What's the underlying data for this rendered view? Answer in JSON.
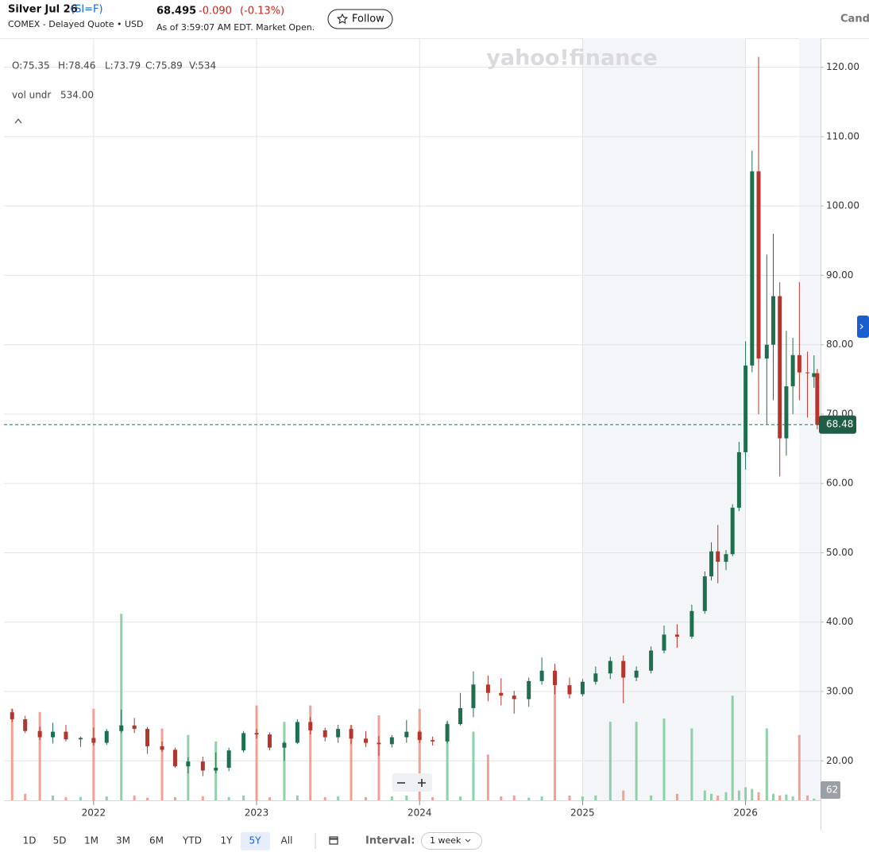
{
  "header": {
    "name": "Silver Jul 26",
    "symbol": "(SI=F)",
    "exchange": "COMEX - Delayed Quote • USD",
    "price": "68.495",
    "change": "-0.090",
    "change_pct": "(-0.13%)",
    "as_of": "As of 3:59:07 AM EDT. Market Open.",
    "follow": "Follow",
    "chart_style": "Candle"
  },
  "legend": {
    "ohlcv": [
      "O:75.35",
      "H:78.46",
      "L:73.79",
      "C:75.89",
      "V:534"
    ],
    "study": "vol undr",
    "study_value": "534.00"
  },
  "toolbar": {
    "ranges": [
      "1D",
      "5D",
      "1M",
      "3M",
      "6M",
      "YTD",
      "1Y",
      "5Y",
      "All"
    ],
    "selected": 7,
    "interval_label": "Interval:",
    "interval": "1 week"
  },
  "chart_data": {
    "type": "candlestick",
    "watermark": "yahoo!finance",
    "x": [
      2021.5,
      2021.58,
      2021.67,
      2021.75,
      2021.83,
      2021.92,
      2022.0,
      2022.08,
      2022.17,
      2022.25,
      2022.33,
      2022.42,
      2022.5,
      2022.58,
      2022.67,
      2022.75,
      2022.83,
      2022.92,
      2023.0,
      2023.08,
      2023.17,
      2023.25,
      2023.33,
      2023.42,
      2023.5,
      2023.58,
      2023.67,
      2023.75,
      2023.83,
      2023.92,
      2024.0,
      2024.08,
      2024.17,
      2024.25,
      2024.33,
      2024.42,
      2024.5,
      2024.58,
      2024.67,
      2024.75,
      2024.83,
      2024.92,
      2025.0,
      2025.08,
      2025.17,
      2025.25,
      2025.33,
      2025.42,
      2025.5,
      2025.58,
      2025.67,
      2025.75,
      2025.79,
      2025.83,
      2025.88,
      2025.92,
      2025.96,
      2026.0,
      2026.04,
      2026.08,
      2026.13,
      2026.17,
      2026.21,
      2026.25,
      2026.29,
      2026.33,
      2026.38,
      2026.42,
      2026.44
    ],
    "ohlc": [
      [
        27.0,
        27.5,
        25.6,
        26.0
      ],
      [
        26.0,
        26.5,
        24.0,
        24.3
      ],
      [
        24.3,
        24.9,
        23.0,
        23.4
      ],
      [
        23.4,
        25.5,
        22.5,
        24.2
      ],
      [
        24.2,
        25.2,
        22.8,
        23.1
      ],
      [
        23.1,
        23.5,
        22.0,
        23.3
      ],
      [
        23.3,
        24.8,
        22.2,
        22.6
      ],
      [
        22.6,
        24.6,
        22.3,
        24.3
      ],
      [
        24.3,
        27.4,
        24.0,
        25.1
      ],
      [
        25.1,
        26.2,
        24.0,
        24.6
      ],
      [
        24.6,
        24.9,
        21.0,
        22.1
      ],
      [
        22.1,
        22.8,
        21.3,
        21.6
      ],
      [
        21.6,
        21.9,
        19.0,
        19.2
      ],
      [
        19.2,
        20.5,
        18.2,
        19.9
      ],
      [
        19.9,
        20.6,
        17.8,
        18.6
      ],
      [
        18.6,
        21.2,
        18.2,
        19.0
      ],
      [
        19.0,
        21.9,
        18.5,
        21.5
      ],
      [
        21.5,
        24.3,
        21.2,
        24.0
      ],
      [
        24.0,
        24.6,
        23.2,
        23.8
      ],
      [
        23.8,
        24.1,
        21.5,
        21.9
      ],
      [
        21.9,
        22.8,
        20.0,
        22.6
      ],
      [
        22.6,
        26.0,
        22.4,
        25.6
      ],
      [
        25.6,
        26.3,
        23.8,
        24.4
      ],
      [
        24.4,
        24.8,
        22.8,
        23.4
      ],
      [
        23.4,
        25.2,
        22.6,
        24.6
      ],
      [
        24.6,
        25.2,
        22.4,
        23.2
      ],
      [
        23.2,
        24.3,
        22.0,
        22.6
      ],
      [
        22.6,
        23.6,
        20.7,
        22.4
      ],
      [
        22.4,
        23.7,
        21.9,
        23.4
      ],
      [
        23.4,
        25.9,
        22.6,
        24.2
      ],
      [
        24.2,
        24.4,
        22.6,
        23.0
      ],
      [
        23.0,
        23.5,
        22.2,
        22.8
      ],
      [
        22.8,
        25.8,
        22.5,
        25.3
      ],
      [
        25.3,
        29.8,
        25.1,
        27.6
      ],
      [
        27.6,
        32.9,
        26.3,
        31.0
      ],
      [
        31.0,
        32.3,
        28.6,
        29.8
      ],
      [
        29.8,
        31.9,
        28.0,
        29.4
      ],
      [
        29.4,
        30.1,
        26.8,
        28.9
      ],
      [
        28.9,
        32.0,
        27.8,
        31.5
      ],
      [
        31.5,
        34.9,
        31.0,
        33.0
      ],
      [
        33.0,
        34.0,
        29.6,
        30.9
      ],
      [
        30.9,
        32.0,
        29.0,
        29.6
      ],
      [
        29.6,
        31.8,
        29.3,
        31.4
      ],
      [
        31.4,
        33.6,
        31.0,
        32.6
      ],
      [
        32.6,
        35.0,
        31.8,
        34.4
      ],
      [
        34.4,
        35.2,
        28.3,
        32.0
      ],
      [
        32.0,
        33.6,
        31.5,
        33.0
      ],
      [
        33.0,
        36.5,
        32.6,
        35.9
      ],
      [
        35.9,
        39.5,
        35.5,
        38.2
      ],
      [
        38.2,
        39.7,
        36.3,
        37.9
      ],
      [
        37.9,
        42.5,
        37.6,
        41.6
      ],
      [
        41.6,
        47.3,
        41.2,
        46.6
      ],
      [
        46.6,
        51.5,
        46.0,
        50.2
      ],
      [
        50.2,
        54.0,
        45.6,
        48.7
      ],
      [
        48.7,
        50.4,
        47.5,
        49.8
      ],
      [
        49.8,
        57.0,
        49.5,
        56.5
      ],
      [
        56.5,
        66.0,
        56.0,
        64.5
      ],
      [
        64.5,
        80.5,
        62.0,
        77.0
      ],
      [
        77.0,
        108.0,
        76.0,
        105.0
      ],
      [
        105.0,
        121.5,
        70.0,
        78.0
      ],
      [
        78.0,
        93.0,
        68.5,
        80.0
      ],
      [
        80.0,
        96.0,
        72.0,
        87.0
      ],
      [
        87.0,
        89.0,
        61.0,
        66.5
      ],
      [
        66.5,
        82.0,
        64.0,
        74.0
      ],
      [
        74.0,
        81.0,
        70.0,
        78.5
      ],
      [
        78.5,
        89.0,
        72.0,
        76.0
      ],
      [
        76.0,
        79.0,
        69.5,
        75.9
      ],
      [
        75.35,
        78.46,
        73.79,
        75.89
      ],
      [
        75.89,
        76.5,
        67.8,
        68.48
      ]
    ],
    "volume": [
      28000,
      2000,
      27000,
      1500,
      1000,
      1000,
      28000,
      1200,
      57000,
      1500,
      800,
      22000,
      1000,
      20000,
      1200,
      18000,
      1000,
      1500,
      29000,
      1000,
      24000,
      1500,
      29000,
      1000,
      1200,
      23000,
      1000,
      26000,
      1200,
      1500,
      28000,
      1000,
      24000,
      1200,
      21000,
      14000,
      1200,
      1500,
      800,
      1200,
      35000,
      1500,
      1200,
      1500,
      24000,
      3000,
      24000,
      1500,
      25000,
      2000,
      22000,
      3000,
      2000,
      1500,
      2500,
      32000,
      3000,
      4000,
      3500,
      2500,
      22000,
      2000,
      1500,
      1800,
      1200,
      20000,
      1500,
      534,
      62
    ],
    "up_color": "#1f6f4f",
    "down_color": "#b3352b",
    "volume_up_color": "#8fd0a8",
    "volume_down_color": "#f1a193",
    "xlim": [
      2021.45,
      2026.46
    ],
    "xticks": [
      2022,
      2023,
      2024,
      2025,
      2026
    ],
    "ylim": [
      14.3,
      124.2
    ],
    "yticks": [
      {
        "value": 20,
        "label": "20.00"
      },
      {
        "value": 30,
        "label": "30.00"
      },
      {
        "value": 40,
        "label": "40.00"
      },
      {
        "value": 50,
        "label": "50.00"
      },
      {
        "value": 60,
        "label": "60.00"
      },
      {
        "value": 70,
        "label": "70.00"
      },
      {
        "value": 80,
        "label": "80.00"
      },
      {
        "value": 90,
        "label": "90.00"
      },
      {
        "value": 100,
        "label": "100.00"
      },
      {
        "value": 110,
        "label": "110.00"
      },
      {
        "value": 120,
        "label": "120.00"
      }
    ],
    "volume_lim": [
      0,
      60000
    ],
    "grid": true
  }
}
